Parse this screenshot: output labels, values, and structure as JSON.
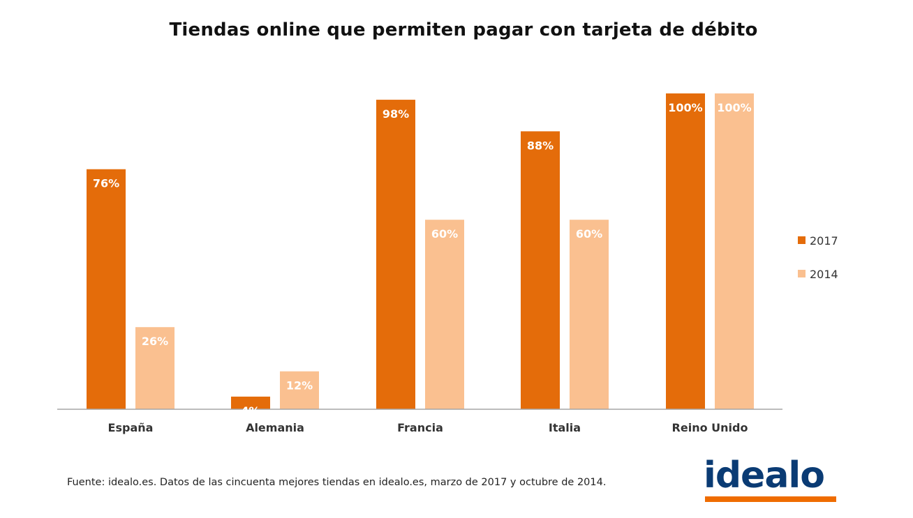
{
  "chart_data": {
    "type": "bar",
    "title": "Tiendas online que permiten pagar con tarjeta de débito",
    "categories": [
      "España",
      "Alemania",
      "Francia",
      "Italia",
      "Reino Unido"
    ],
    "series": [
      {
        "name": "2017",
        "values": [
          76,
          4,
          98,
          88,
          100
        ],
        "labels": [
          "76%",
          "4%",
          "98%",
          "88%",
          "100%"
        ],
        "color": "#e46c0a"
      },
      {
        "name": "2014",
        "values": [
          26,
          12,
          60,
          60,
          100
        ],
        "labels": [
          "26%",
          "12%",
          "60%",
          "60%",
          "100%"
        ],
        "color": "#fac090"
      }
    ],
    "ylim": [
      0,
      100
    ],
    "unit": "%",
    "grid": false,
    "legend_position": "right"
  },
  "source": "Fuente: idealo.es. Datos de las cincuenta mejores tiendas en idealo.es, marzo de 2017 y octubre de 2014.",
  "logo": {
    "text": "idealo",
    "text_color": "#0a3b74",
    "accent_color": "#ef6c00"
  }
}
